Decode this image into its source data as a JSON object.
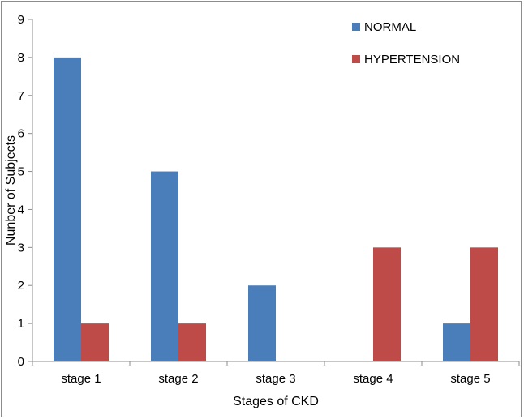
{
  "chart_data": {
    "type": "bar",
    "title": "",
    "xlabel": "Stages of CKD",
    "ylabel": "Nunber of Subjects",
    "categories": [
      "stage 1",
      "stage 2",
      "stage 3",
      "stage 4",
      "stage 5"
    ],
    "series": [
      {
        "name": "NORMAL",
        "color": "#4a7ebb",
        "values": [
          8,
          5,
          2,
          0,
          1
        ]
      },
      {
        "name": "HYPERTENSION",
        "color": "#be4b48",
        "values": [
          1,
          1,
          0,
          3,
          3
        ]
      }
    ],
    "ylim": [
      0,
      9
    ],
    "yticks": [
      0,
      1,
      2,
      3,
      4,
      5,
      6,
      7,
      8,
      9
    ],
    "grid": false,
    "legend_position": "top-right"
  }
}
